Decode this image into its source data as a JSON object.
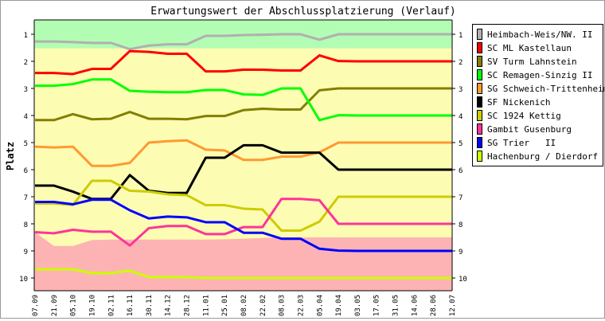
{
  "chart_data": {
    "type": "line",
    "title": "Erwartungswert der Abschlussplatzierung (Verlauf)",
    "xlabel": "",
    "ylabel": "Platz",
    "ylim": [
      0.5,
      10.5
    ],
    "y_inverted": true,
    "yticks": [
      "1",
      "2",
      "3",
      "4",
      "5",
      "6",
      "7",
      "8",
      "9",
      "10"
    ],
    "grid": false,
    "legend_position": "right",
    "categories": [
      "07.09",
      "21.09",
      "05.10",
      "19.10",
      "02.11",
      "16.11",
      "30.11",
      "14.12",
      "28.12",
      "11.01",
      "25.01",
      "08.02",
      "22.02",
      "08.03",
      "22.03",
      "05.04",
      "19.04",
      "03.05",
      "17.05",
      "31.05",
      "14.06",
      "28.06",
      "12.07"
    ],
    "bands": {
      "promotion_color": "#b3fcb3",
      "middle_color": "#fdfcb3",
      "relegation_color": "#fdb3b3",
      "promotion_limit": [
        1.52,
        1.52,
        1.52,
        1.52,
        1.52,
        1.52,
        1.52,
        1.52,
        1.52,
        1.52,
        1.52,
        1.52,
        1.52,
        1.52,
        1.52,
        1.52,
        1.52,
        1.52,
        1.52,
        1.52,
        1.52,
        1.52,
        1.52
      ],
      "relegation_limit": [
        8.31,
        8.82,
        8.82,
        8.6,
        8.58,
        8.58,
        8.58,
        8.58,
        8.58,
        8.58,
        8.57,
        8.55,
        8.52,
        8.5,
        8.5,
        8.5,
        8.5,
        8.5,
        8.5,
        8.5,
        8.5,
        8.5,
        8.5
      ]
    },
    "series": [
      {
        "name": "Heimbach-Weis/NW. II",
        "color": "#b0b0b0",
        "values": [
          1.27,
          1.27,
          1.29,
          1.32,
          1.32,
          1.55,
          1.42,
          1.37,
          1.37,
          1.06,
          1.06,
          1.03,
          1.02,
          1.0,
          1.0,
          1.2,
          1.0,
          1.0,
          1.0,
          1.0,
          1.0,
          1.0,
          1.0
        ]
      },
      {
        "name": "SC ML Kastellaun",
        "color": "#ff0000",
        "values": [
          2.43,
          2.43,
          2.47,
          2.28,
          2.28,
          1.62,
          1.65,
          1.72,
          1.72,
          2.37,
          2.37,
          2.31,
          2.31,
          2.34,
          2.34,
          1.78,
          1.99,
          2.0,
          2.0,
          2.0,
          2.0,
          2.0,
          2.0
        ]
      },
      {
        "name": "SV Turm Lahnstein",
        "color": "#808000",
        "values": [
          4.17,
          4.17,
          3.95,
          4.14,
          4.12,
          3.87,
          4.12,
          4.12,
          4.14,
          4.02,
          4.02,
          3.8,
          3.75,
          3.78,
          3.78,
          3.07,
          3.0,
          3.0,
          3.0,
          3.0,
          3.0,
          3.0,
          3.0
        ]
      },
      {
        "name": "SC Remagen-Sinzig II",
        "color": "#00ff00",
        "values": [
          2.9,
          2.9,
          2.84,
          2.67,
          2.67,
          3.09,
          3.12,
          3.14,
          3.14,
          3.06,
          3.06,
          3.22,
          3.24,
          3.0,
          3.0,
          4.17,
          3.99,
          4.0,
          4.0,
          4.0,
          4.0,
          4.0,
          4.0
        ]
      },
      {
        "name": "SG Schweich-Trittenheim",
        "color": "#ff9933",
        "values": [
          5.15,
          5.18,
          5.15,
          5.86,
          5.86,
          5.75,
          5.0,
          4.95,
          4.92,
          5.26,
          5.29,
          5.64,
          5.64,
          5.52,
          5.52,
          5.36,
          5.0,
          5.0,
          5.0,
          5.0,
          5.0,
          5.0,
          5.0
        ]
      },
      {
        "name": "SF Nickenich",
        "color": "#000000",
        "values": [
          6.59,
          6.59,
          6.81,
          7.08,
          7.08,
          6.2,
          6.78,
          6.86,
          6.86,
          5.56,
          5.56,
          5.1,
          5.1,
          5.37,
          5.37,
          5.37,
          6.0,
          6.0,
          6.0,
          6.0,
          6.0,
          6.0,
          6.0
        ]
      },
      {
        "name": "SC 1924 Kettig",
        "color": "#cccc00",
        "values": [
          7.25,
          7.25,
          7.3,
          6.41,
          6.41,
          6.78,
          6.81,
          6.91,
          6.94,
          7.31,
          7.31,
          7.44,
          7.47,
          8.25,
          8.25,
          7.92,
          7.0,
          7.0,
          7.0,
          7.0,
          7.0,
          7.0,
          7.0
        ]
      },
      {
        "name": "Gambit Gusenburg",
        "color": "#ff3399",
        "values": [
          8.31,
          8.35,
          8.22,
          8.29,
          8.29,
          8.8,
          8.16,
          8.08,
          8.08,
          8.38,
          8.38,
          8.12,
          8.12,
          7.08,
          7.08,
          7.13,
          8.0,
          8.0,
          8.0,
          8.0,
          8.0,
          8.0,
          8.0
        ]
      },
      {
        "name": "SG Trier   II",
        "color": "#0000ff",
        "values": [
          7.19,
          7.19,
          7.28,
          7.11,
          7.11,
          7.5,
          7.8,
          7.73,
          7.76,
          7.94,
          7.94,
          8.33,
          8.33,
          8.55,
          8.55,
          8.92,
          8.99,
          9.0,
          9.0,
          9.0,
          9.0,
          9.0,
          9.0
        ]
      },
      {
        "name": "Hachenburg / Dierdorf",
        "color": "#ccff00",
        "values": [
          9.68,
          9.68,
          9.68,
          9.82,
          9.82,
          9.73,
          9.97,
          9.97,
          9.97,
          10.0,
          10.0,
          10.0,
          10.0,
          10.0,
          10.0,
          10.0,
          10.0,
          10.0,
          10.0,
          10.0,
          10.0,
          10.0,
          10.0
        ]
      }
    ]
  }
}
